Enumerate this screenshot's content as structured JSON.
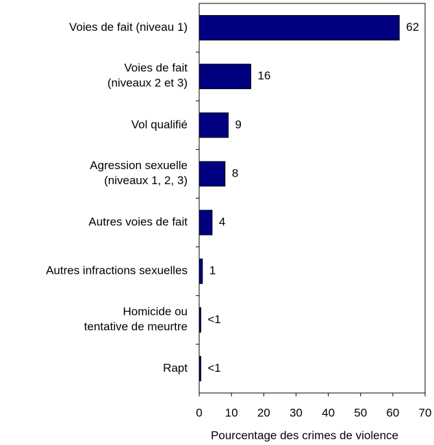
{
  "chart_data": {
    "type": "hbar",
    "x_label": "Pourcentage des crimes de violence",
    "categories": [
      "Voies de fait (niveau 1)",
      "Voies de fait\n(niveaux 2 et 3)",
      "Vol qualifié",
      "Agression sexuelle\n(niveaux 1, 2, 3)",
      "Autres voies de fait",
      "Autres infractions sexuelles",
      "Homicide ou\ntentative de meurtre",
      "Rapt"
    ],
    "values": [
      62,
      16,
      9,
      8,
      4,
      1,
      0.5,
      0.5
    ],
    "value_labels": [
      "62",
      "16",
      "9",
      "8",
      "4",
      "1",
      "<1",
      "<1"
    ],
    "color": "#000080",
    "xlim": [
      0,
      70
    ],
    "xticks": [
      0,
      10,
      20,
      30,
      40,
      50,
      60,
      70
    ]
  }
}
